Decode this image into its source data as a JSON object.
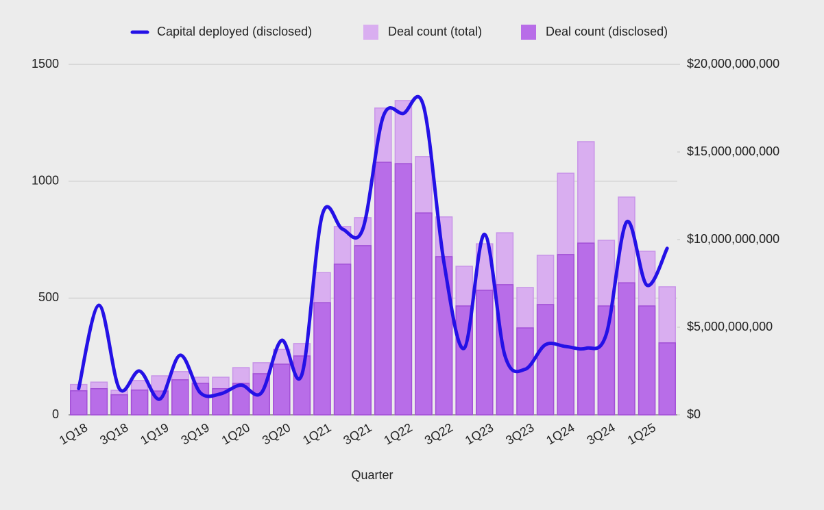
{
  "chart_data": {
    "type": "combo",
    "x_label": "Quarter",
    "categories": [
      "1Q18",
      null,
      "3Q18",
      null,
      "1Q19",
      null,
      "3Q19",
      null,
      "1Q20",
      null,
      "3Q20",
      null,
      "1Q21",
      null,
      "3Q21",
      null,
      "1Q22",
      null,
      "3Q22",
      null,
      "1Q23",
      null,
      "3Q23",
      null,
      "1Q24",
      null,
      "3Q24",
      null,
      "1Q25",
      null
    ],
    "series": [
      {
        "name": "Capital deployed (disclosed)",
        "kind": "line",
        "axis": "y2",
        "color": "#2411e6",
        "values": [
          1500000000,
          6250000000,
          1500000000,
          2500000000,
          900000000,
          3400000000,
          1250000000,
          1200000000,
          1700000000,
          1250000000,
          4250000000,
          2300000000,
          11400000000,
          10600000000,
          10600000000,
          17000000000,
          17200000000,
          17600000000,
          8700000000,
          3800000000,
          10300000000,
          3400000000,
          2600000000,
          4000000000,
          3900000000,
          3800000000,
          4600000000,
          11000000000,
          7400000000,
          9500000000
        ]
      },
      {
        "name": "Deal count (total)",
        "kind": "bar",
        "color": "#d9aef0",
        "values": [
          130,
          140,
          105,
          147,
          167,
          185,
          161,
          161,
          202,
          223,
          280,
          305,
          609,
          806,
          844,
          1313,
          1345,
          1105,
          847,
          636,
          732,
          779,
          545,
          683,
          1034,
          1169,
          747,
          932,
          700,
          548
        ]
      },
      {
        "name": "Deal count (disclosed)",
        "kind": "bar",
        "color": "#b86de8",
        "values": [
          103,
          112,
          86,
          106,
          102,
          150,
          135,
          112,
          135,
          176,
          217,
          252,
          480,
          645,
          724,
          1081,
          1075,
          864,
          677,
          466,
          533,
          557,
          372,
          472,
          686,
          735,
          466,
          565,
          466,
          308
        ]
      }
    ],
    "ylim": [
      0,
      1500
    ],
    "yticks": [
      0,
      500,
      1000,
      1500
    ],
    "y2lim": [
      0,
      20000000000
    ],
    "y2ticks": [
      {
        "value": 0,
        "label": "$0"
      },
      {
        "value": 5000000000,
        "label": "$5,000,000,000"
      },
      {
        "value": 10000000000,
        "label": "$10,000,000,000"
      },
      {
        "value": 15000000000,
        "label": "$15,000,000,000"
      },
      {
        "value": 20000000000,
        "label": "$20,000,000,000"
      }
    ],
    "grid": true,
    "legend": "top"
  }
}
